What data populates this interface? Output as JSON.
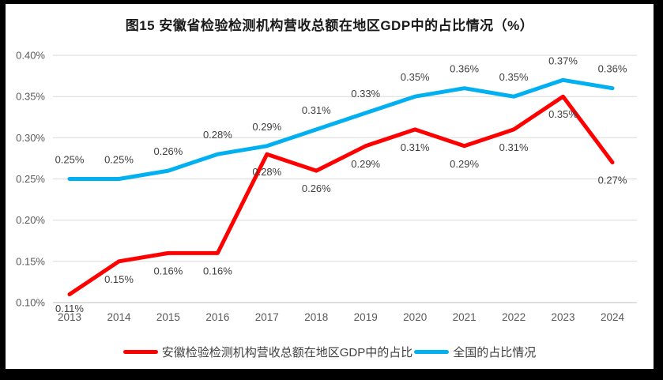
{
  "title": "图15 安徽省检验检测机构营收总额在地区GDP中的占比情况（%）",
  "chart_data": {
    "type": "line",
    "categories": [
      "2013",
      "2014",
      "2015",
      "2016",
      "2017",
      "2018",
      "2019",
      "2020",
      "2021",
      "2022",
      "2023",
      "2024"
    ],
    "series": [
      {
        "name": "安徽检验检测机构营收总额在地区GDP中的占比",
        "color": "#FF0000",
        "values": [
          0.11,
          0.15,
          0.16,
          0.16,
          0.28,
          0.26,
          0.29,
          0.31,
          0.29,
          0.31,
          0.35,
          0.27
        ],
        "data_labels": [
          "0.11%",
          "0.15%",
          "0.16%",
          "0.16%",
          "0.28%",
          "0.26%",
          "0.29%",
          "0.31%",
          "0.29%",
          "0.31%",
          "0.35%",
          "0.27%"
        ],
        "label_position": "below"
      },
      {
        "name": "全国的占比情况",
        "color": "#00B0F0",
        "values": [
          0.25,
          0.25,
          0.26,
          0.28,
          0.29,
          0.31,
          0.33,
          0.35,
          0.36,
          0.35,
          0.37,
          0.36
        ],
        "data_labels": [
          "0.25%",
          "0.25%",
          "0.26%",
          "0.28%",
          "0.29%",
          "0.31%",
          "0.33%",
          "0.35%",
          "0.36%",
          "0.35%",
          "0.37%",
          "0.36%"
        ],
        "label_position": "above"
      }
    ],
    "ylim": [
      0.1,
      0.4
    ],
    "yticks": [
      0.1,
      0.15,
      0.2,
      0.25,
      0.3,
      0.35,
      0.4
    ],
    "ytick_labels": [
      "0.10%",
      "0.15%",
      "0.20%",
      "0.25%",
      "0.30%",
      "0.35%",
      "0.40%"
    ],
    "xlabel": "",
    "ylabel": "",
    "grid": true,
    "legend_position": "bottom"
  },
  "legend": {
    "items": [
      {
        "label": "安徽检验检测机构营收总额在地区GDP中的占比",
        "color": "#FF0000"
      },
      {
        "label": "全国的占比情况",
        "color": "#00B0F0"
      }
    ]
  },
  "colors": {
    "series_red": "#FF0000",
    "series_blue": "#00B0F0",
    "gridline": "#D9D9D9",
    "axis_line": "#BFBFBF",
    "data_label_text": "#404040",
    "tick_text": "#595959",
    "title_text": "#1a1a1a",
    "background": "#FFFFFF",
    "border": "#000000"
  }
}
